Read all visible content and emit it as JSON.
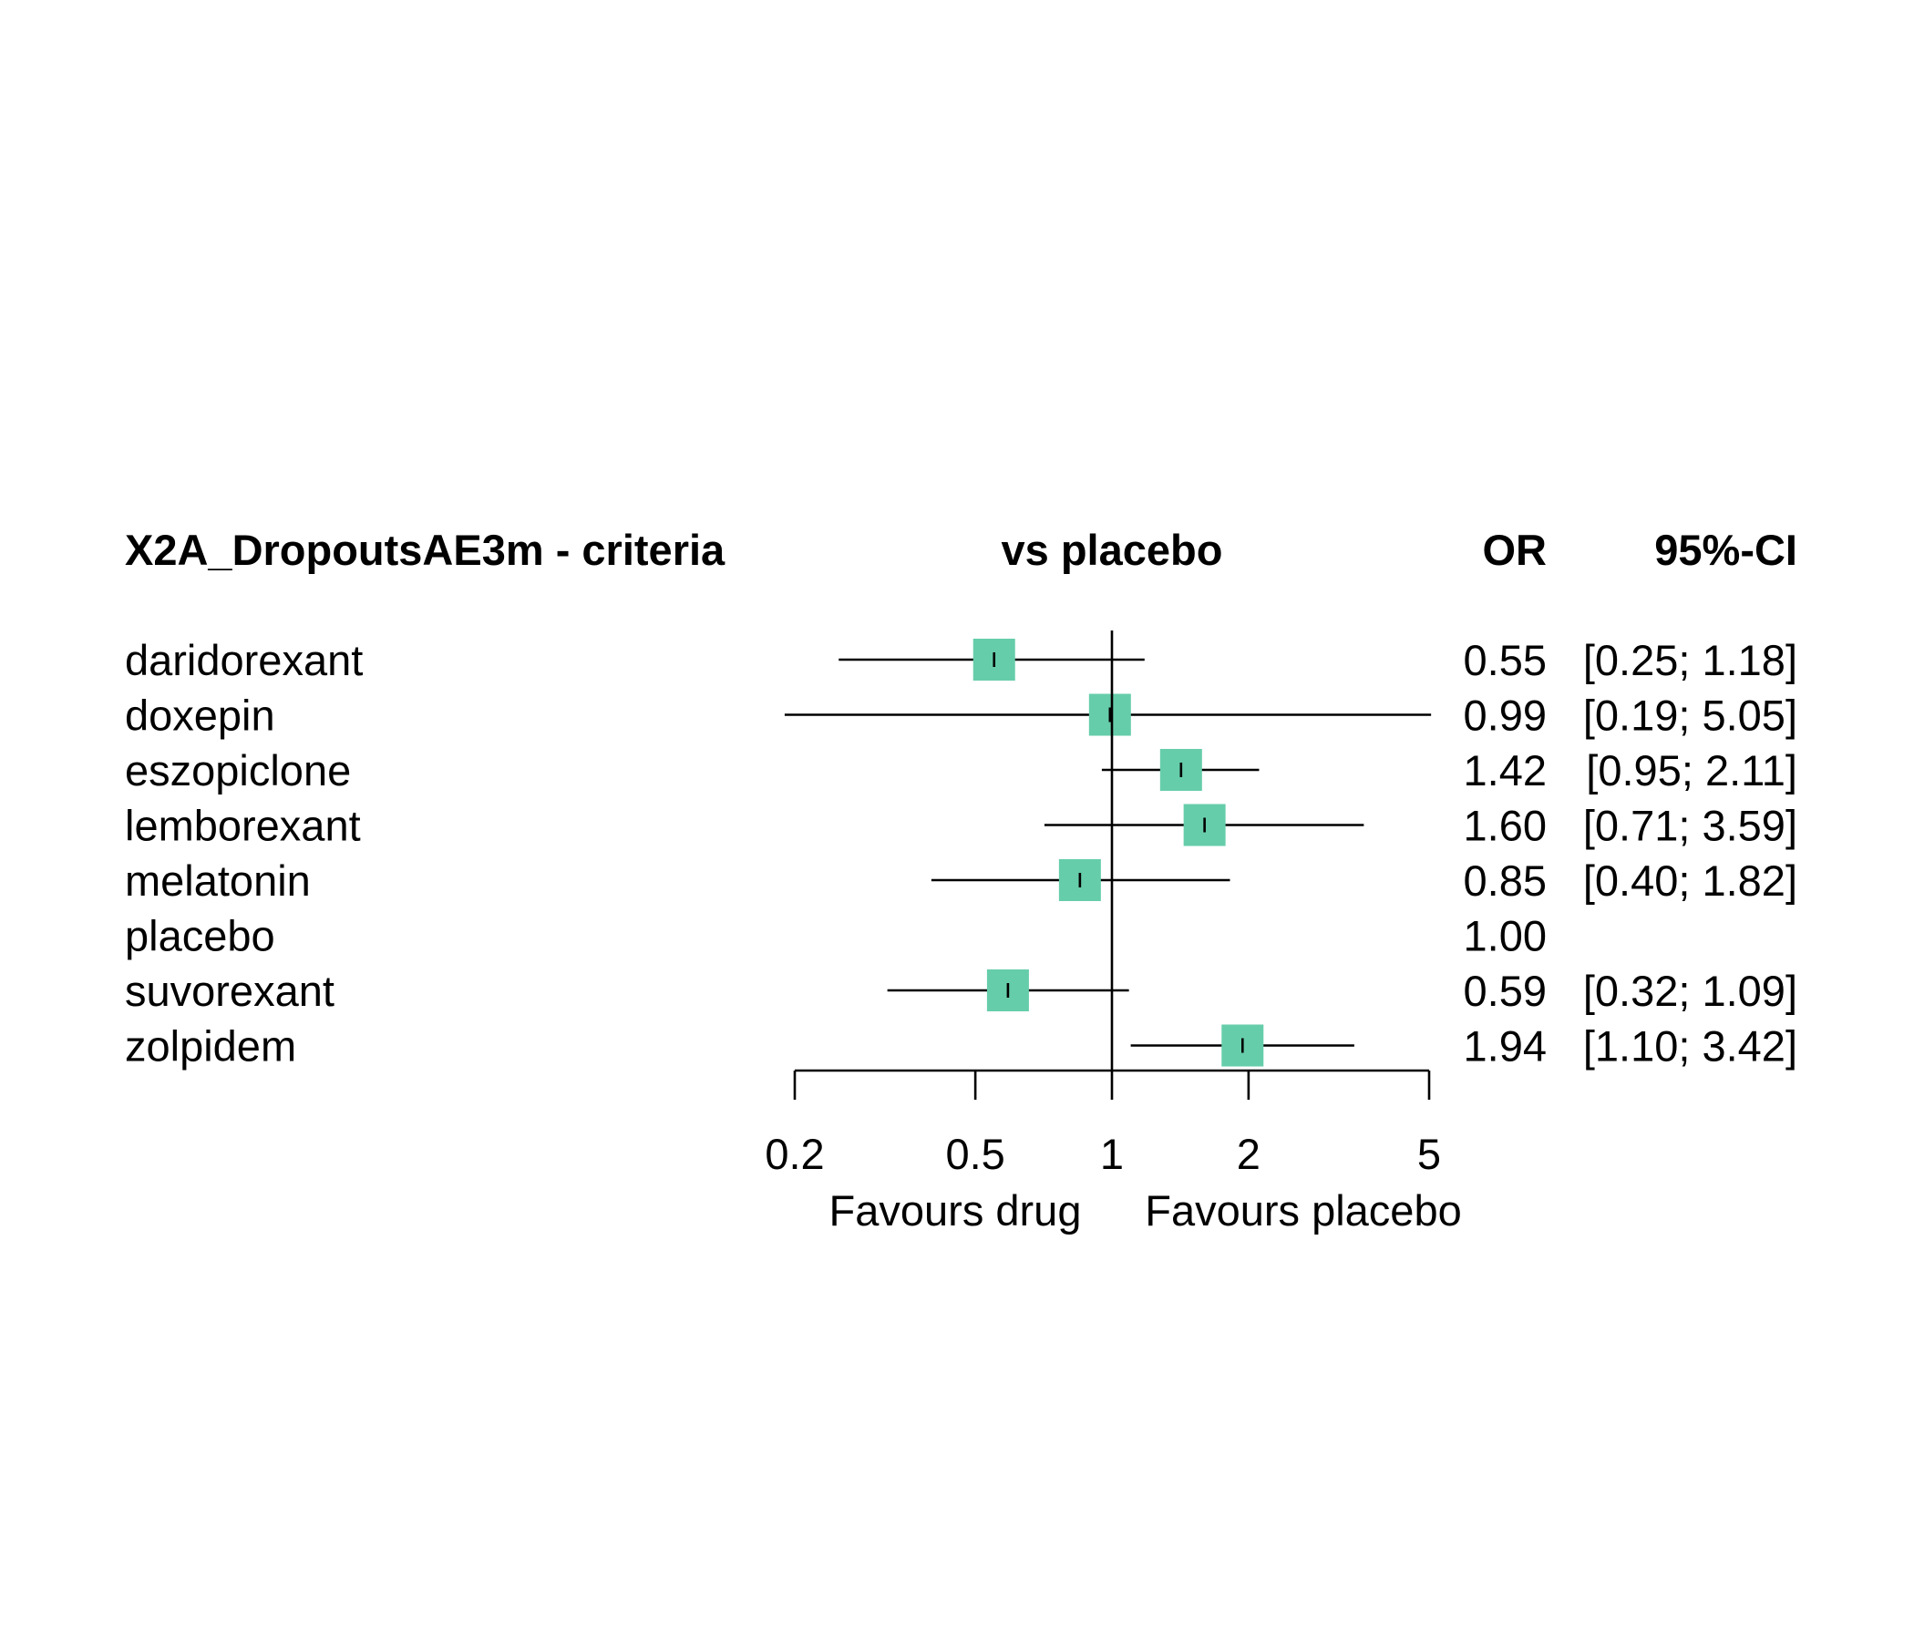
{
  "chart_data": {
    "type": "forest",
    "title": "X2A_DropoutsAE3m - criteria",
    "comparison_header": "vs placebo",
    "estimate_header": "OR",
    "ci_header": "95%-CI",
    "xlabel_left": "Favours drug",
    "xlabel_right": "Favours placebo",
    "x_scale": "log",
    "xlim": [
      0.2,
      5
    ],
    "x_ticks": [
      0.2,
      0.5,
      1,
      2,
      5
    ],
    "x_tick_labels": [
      "0.2",
      "0.5",
      "1",
      "2",
      "5"
    ],
    "reference_value": 1,
    "box_color": "#66CDAA",
    "rows": [
      {
        "label": "daridorexant",
        "or": 0.55,
        "lower": 0.25,
        "upper": 1.18,
        "or_text": "0.55",
        "ci_text": "[0.25; 1.18]"
      },
      {
        "label": "doxepin",
        "or": 0.99,
        "lower": 0.19,
        "upper": 5.05,
        "or_text": "0.99",
        "ci_text": "[0.19; 5.05]"
      },
      {
        "label": "eszopiclone",
        "or": 1.42,
        "lower": 0.95,
        "upper": 2.11,
        "or_text": "1.42",
        "ci_text": "[0.95; 2.11]"
      },
      {
        "label": "lemborexant",
        "or": 1.6,
        "lower": 0.71,
        "upper": 3.59,
        "or_text": "1.60",
        "ci_text": "[0.71; 3.59]"
      },
      {
        "label": "melatonin",
        "or": 0.85,
        "lower": 0.4,
        "upper": 1.82,
        "or_text": "0.85",
        "ci_text": "[0.40; 1.82]"
      },
      {
        "label": "placebo",
        "or": null,
        "lower": null,
        "upper": null,
        "or_text": "1.00",
        "ci_text": ""
      },
      {
        "label": "suvorexant",
        "or": 0.59,
        "lower": 0.32,
        "upper": 1.09,
        "or_text": "0.59",
        "ci_text": "[0.32; 1.09]"
      },
      {
        "label": "zolpidem",
        "or": 1.94,
        "lower": 1.1,
        "upper": 3.42,
        "or_text": "1.94",
        "ci_text": "[1.10; 3.42]"
      }
    ]
  }
}
